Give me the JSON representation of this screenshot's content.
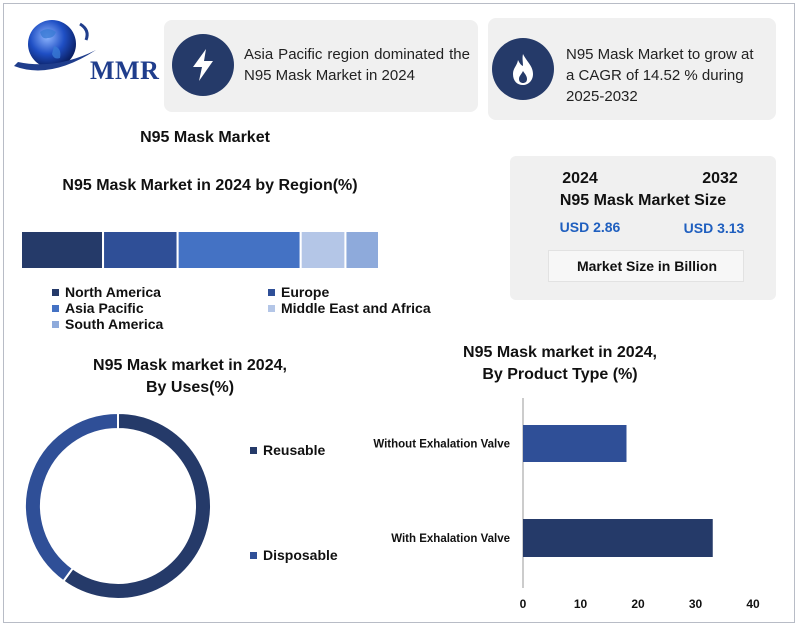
{
  "logo": {
    "text": "MMR"
  },
  "banners": [
    {
      "icon": "lightning-bolt-icon",
      "text": "Asia Pacific region dominated the N95 Mask Market in 2024"
    },
    {
      "icon": "flame-icon",
      "text": "N95 Mask Market to grow at a CAGR of 14.52 % during 2025-2032"
    }
  ],
  "main_title": "N95 Mask Market",
  "market_size": {
    "year_start": "2024",
    "year_end": "2032",
    "title": "N95 Mask Market Size",
    "value_start": "USD 2.86",
    "value_end": "USD 3.13",
    "unit_note": "Market Size in Billion"
  },
  "colors": {
    "north_america": "#253a69",
    "europe": "#2f4f97",
    "asia_pacific": "#4472c4",
    "middle_east_africa": "#b4c6e7",
    "south_america": "#8eaadb",
    "reusable": "#253a69",
    "disposable": "#2f4f97",
    "bar": "#2f4f97",
    "bar2": "#253a69"
  },
  "chart_data": [
    {
      "type": "bar",
      "orientation": "stacked-horizontal",
      "title": "N95 Mask Market in 2024 by Region(%)",
      "categories": [
        "North America",
        "Europe",
        "Asia Pacific",
        "Middle East and Africa",
        "South America"
      ],
      "values": [
        22,
        20,
        33,
        12,
        9
      ],
      "legend": "bottom",
      "grid": false
    },
    {
      "type": "pie",
      "variant": "donut",
      "title_line1": "N95 Mask market in 2024,",
      "title_line2": "By Uses(%)",
      "categories": [
        "Reusable",
        "Disposable"
      ],
      "values": [
        60,
        40
      ],
      "legend": "right"
    },
    {
      "type": "bar",
      "orientation": "horizontal",
      "title_line1": "N95 Mask market in 2024,",
      "title_line2": "By Product Type (%)",
      "categories": [
        "Without Exhalation Valve",
        "With Exhalation Valve"
      ],
      "values": [
        18,
        33
      ],
      "xlim": [
        0,
        40
      ],
      "xticks": [
        "0",
        "10",
        "20",
        "30",
        "40"
      ],
      "grid": false
    }
  ]
}
